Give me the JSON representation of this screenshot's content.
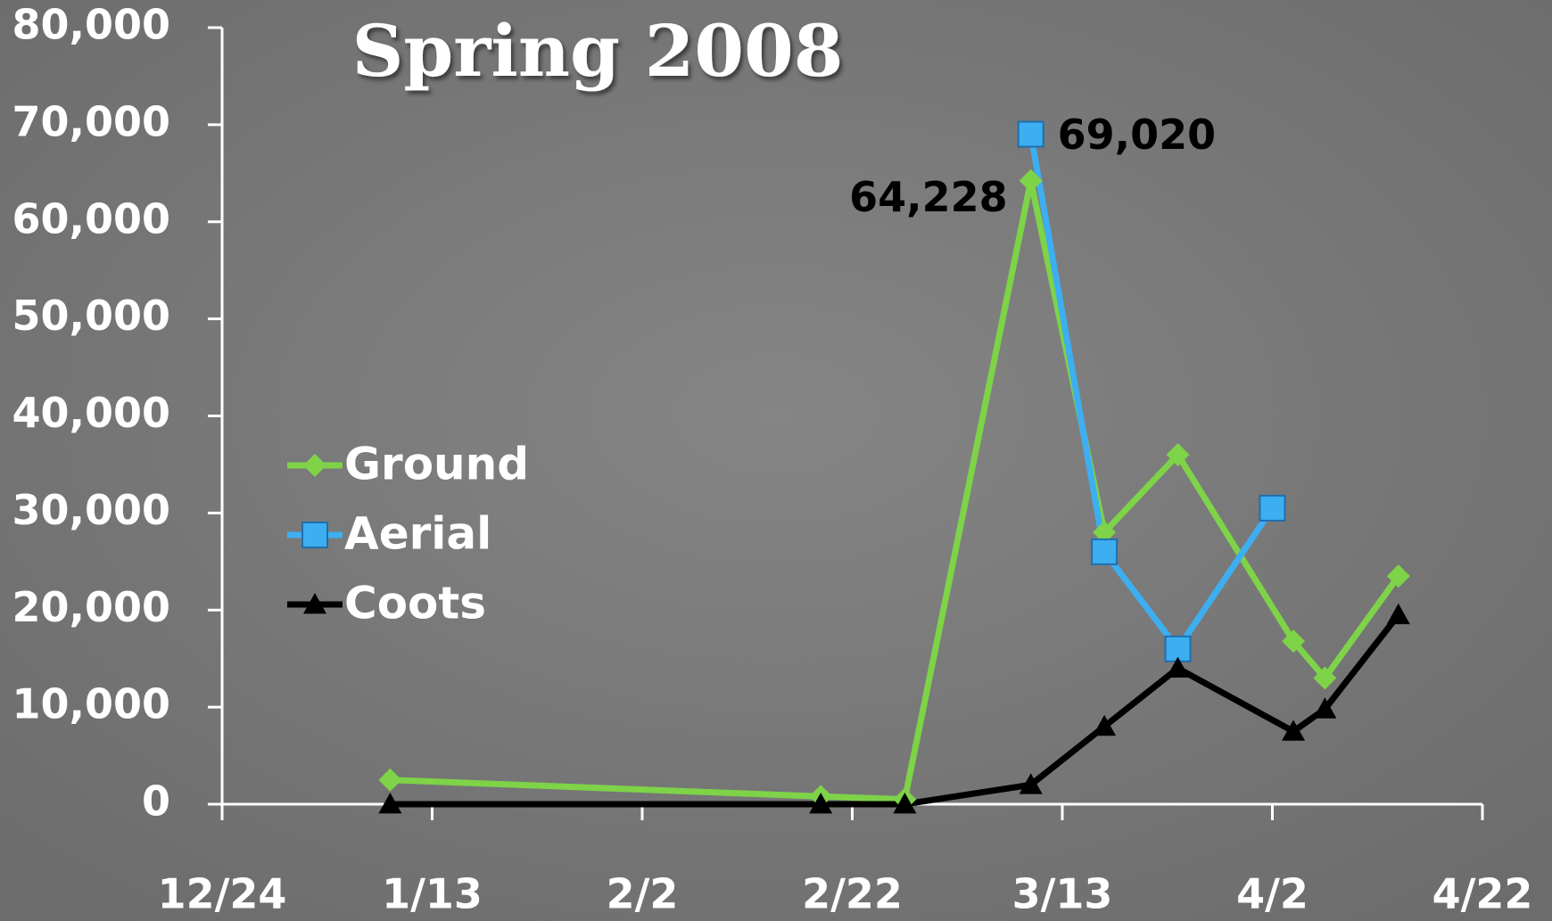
{
  "chart_data": {
    "type": "line",
    "title": "Spring 2008",
    "xlim": [
      "12/24",
      "4/22"
    ],
    "xticks": [
      "12/24",
      "1/13",
      "2/2",
      "2/22",
      "3/13",
      "4/2",
      "4/22"
    ],
    "ylim": [
      0,
      80000
    ],
    "yticks": [
      0,
      {
        "value": 10000,
        "label": "10,000"
      },
      {
        "value": 20000,
        "label": "20,000"
      },
      {
        "value": 30000,
        "label": "30,000"
      },
      {
        "value": 40000,
        "label": "40,000"
      },
      {
        "value": 50000,
        "label": "50,000"
      },
      {
        "value": 60000,
        "label": "60,000"
      },
      {
        "value": 70000,
        "label": "70,000"
      },
      {
        "value": 80000,
        "label": "80,000"
      }
    ],
    "grid": false,
    "legend": "left",
    "series": [
      {
        "name": "Ground",
        "color": "#7ed348",
        "marker": "diamond",
        "x": [
          "1/9",
          "2/19",
          "2/27",
          "3/10",
          "3/17",
          "3/24",
          "4/4",
          "4/7",
          "4/14"
        ],
        "values": [
          2500,
          800,
          500,
          64228,
          28000,
          36000,
          16800,
          13000,
          23500
        ],
        "value_labels": [
          null,
          null,
          null,
          "64,228",
          null,
          null,
          null,
          null,
          null
        ]
      },
      {
        "name": "Aerial",
        "color": "#3daef0",
        "marker": "square",
        "x": [
          "3/10",
          "3/17",
          "3/24",
          "4/2"
        ],
        "values": [
          69020,
          26000,
          16000,
          30500
        ],
        "value_labels": [
          "69,020",
          null,
          null,
          null
        ]
      },
      {
        "name": "Coots",
        "color": "#000000",
        "marker": "triangle",
        "x": [
          "1/9",
          "2/19",
          "2/27",
          "3/10",
          "3/17",
          "3/24",
          "4/4",
          "4/7",
          "4/14"
        ],
        "values": [
          0,
          0,
          0,
          2000,
          8000,
          14000,
          7500,
          9800,
          19500
        ]
      }
    ]
  }
}
